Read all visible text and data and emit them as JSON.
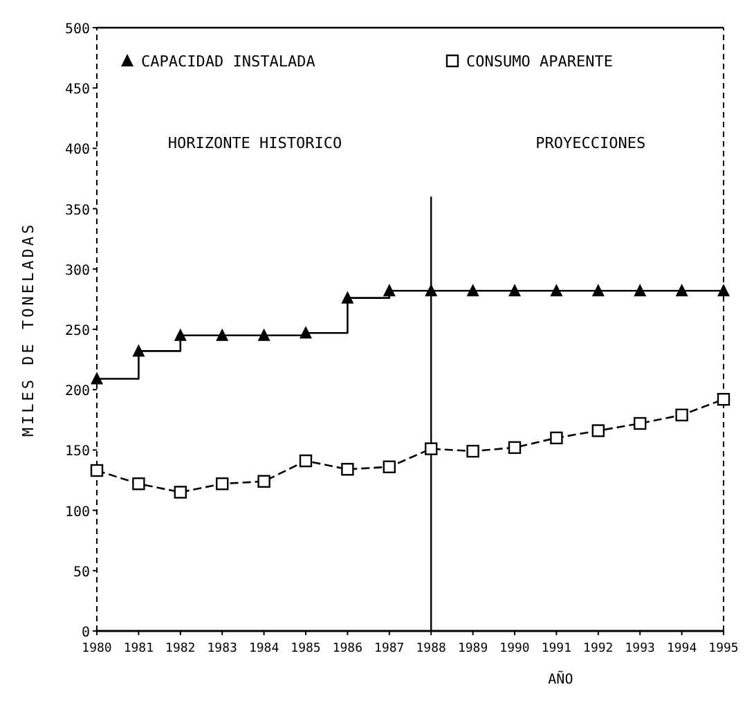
{
  "chart_data": {
    "type": "line",
    "ylabel": "MILES DE TONELADAS",
    "xlabel": "AÑO",
    "x": [
      1980,
      1981,
      1982,
      1983,
      1984,
      1985,
      1986,
      1987,
      1988,
      1989,
      1990,
      1991,
      1992,
      1993,
      1994,
      1995
    ],
    "series": [
      {
        "name": "CAPACIDAD INSTALADA",
        "type": "step",
        "color": "#000000",
        "marker": "triangle",
        "values": [
          209,
          232,
          245,
          245,
          245,
          247,
          276,
          282,
          282,
          282,
          282,
          282,
          282,
          282,
          282,
          282
        ]
      },
      {
        "name": "CONSUMO APARENTE",
        "color": "#000000",
        "marker": "square",
        "line_style": "dashed",
        "values": [
          133,
          122,
          115,
          122,
          124,
          141,
          134,
          136,
          151,
          149,
          152,
          160,
          166,
          172,
          179,
          192
        ]
      }
    ],
    "xlim": [
      1980,
      1995
    ],
    "xticks": [
      1980,
      1981,
      1982,
      1983,
      1984,
      1985,
      1986,
      1987,
      1988,
      1989,
      1990,
      1991,
      1992,
      1993,
      1994,
      1995
    ],
    "ylim": [
      0,
      500
    ],
    "yticks": [
      0,
      50,
      100,
      150,
      200,
      250,
      300,
      350,
      400,
      450,
      500
    ],
    "ref_lines": [
      {
        "axis": "x",
        "value": 1988,
        "label": null
      }
    ],
    "annotations": [
      "HORIZONTE HISTORICO",
      "PROYECCIONES"
    ],
    "legend": "top left",
    "grid": false
  }
}
